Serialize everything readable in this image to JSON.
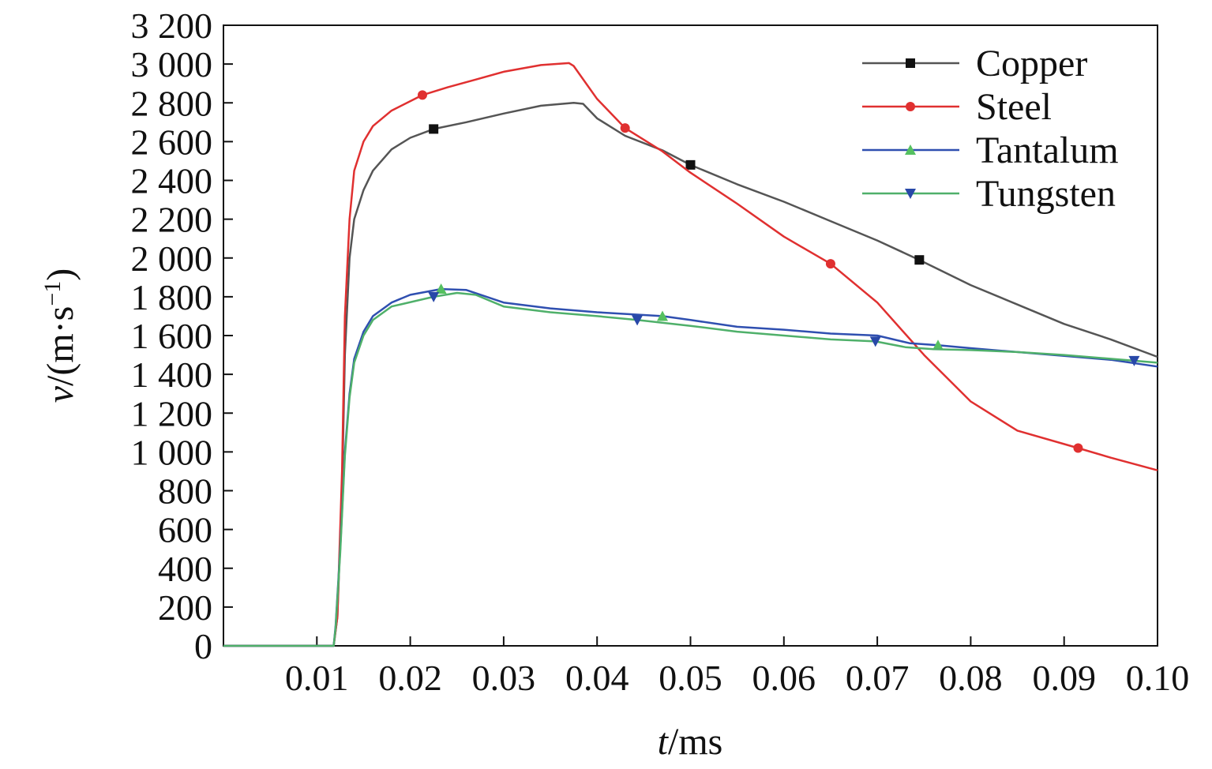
{
  "chart_data": {
    "type": "line",
    "xlabel_var": "t",
    "xlabel_unit": "/ms",
    "ylabel_var": "v",
    "ylabel_unit": "/(m·s",
    "ylabel_exp": "−1",
    "ylabel_close": ")",
    "xlim": [
      0,
      0.1
    ],
    "ylim": [
      0,
      3200
    ],
    "x_tick_values": [
      0.01,
      0.02,
      0.03,
      0.04,
      0.05,
      0.06,
      0.07,
      0.08,
      0.09,
      0.1
    ],
    "x_tick_labels": [
      "0.01",
      "0.02",
      "0.03",
      "0.04",
      "0.05",
      "0.06",
      "0.07",
      "0.08",
      "0.09",
      "0.10"
    ],
    "y_tick_values": [
      0,
      200,
      400,
      600,
      800,
      1000,
      1200,
      1400,
      1600,
      1800,
      2000,
      2200,
      2400,
      2600,
      2800,
      3000,
      3200
    ],
    "y_tick_labels": [
      "0",
      "200",
      "400",
      "600",
      "800",
      "1 000",
      "1 200",
      "1 400",
      "1 600",
      "1 800",
      "2 000",
      "2 200",
      "2 400",
      "2 600",
      "2 800",
      "3 000",
      "3 200"
    ],
    "grid": false,
    "legend_position": "top-right",
    "series": [
      {
        "name": "Copper",
        "color": "#555555",
        "marker": "square",
        "marker_color": "#111111",
        "x": [
          0,
          0.011,
          0.0118,
          0.0122,
          0.0127,
          0.013,
          0.0135,
          0.014,
          0.015,
          0.016,
          0.018,
          0.02,
          0.0225,
          0.026,
          0.03,
          0.034,
          0.0375,
          0.0385,
          0.04,
          0.043,
          0.047,
          0.05,
          0.055,
          0.06,
          0.065,
          0.07,
          0.0745,
          0.08,
          0.085,
          0.09,
          0.095,
          0.1
        ],
        "y": [
          0,
          0,
          0,
          150,
          800,
          1500,
          2000,
          2200,
          2350,
          2450,
          2560,
          2620,
          2665,
          2700,
          2745,
          2785,
          2800,
          2795,
          2720,
          2630,
          2555,
          2480,
          2380,
          2290,
          2190,
          2090,
          1990,
          1860,
          1760,
          1660,
          1580,
          1490
        ]
      },
      {
        "name": "Steel",
        "color": "#e03030",
        "marker": "circle",
        "marker_color": "#e03030",
        "x": [
          0,
          0.011,
          0.0118,
          0.0122,
          0.0127,
          0.013,
          0.0135,
          0.014,
          0.015,
          0.016,
          0.018,
          0.0213,
          0.024,
          0.027,
          0.03,
          0.034,
          0.037,
          0.0375,
          0.04,
          0.043,
          0.047,
          0.05,
          0.055,
          0.06,
          0.065,
          0.07,
          0.075,
          0.08,
          0.085,
          0.0915,
          0.095,
          0.1
        ],
        "y": [
          0,
          0,
          0,
          150,
          900,
          1700,
          2200,
          2450,
          2600,
          2680,
          2760,
          2840,
          2880,
          2920,
          2960,
          2995,
          3005,
          2990,
          2820,
          2670,
          2550,
          2440,
          2280,
          2110,
          1970,
          1770,
          1500,
          1260,
          1110,
          1020,
          970,
          905
        ]
      },
      {
        "name": "Tantalum",
        "color": "#2f4fb0",
        "marker": "triangle-up",
        "marker_color": "#55c060",
        "x": [
          0,
          0.011,
          0.0118,
          0.012,
          0.0125,
          0.013,
          0.0135,
          0.014,
          0.015,
          0.016,
          0.018,
          0.02,
          0.0233,
          0.026,
          0.03,
          0.035,
          0.04,
          0.047,
          0.05,
          0.055,
          0.06,
          0.065,
          0.07,
          0.0735,
          0.0765,
          0.08,
          0.085,
          0.09,
          0.095,
          0.1
        ],
        "y": [
          0,
          0,
          0,
          100,
          500,
          1000,
          1300,
          1480,
          1620,
          1700,
          1770,
          1810,
          1840,
          1835,
          1770,
          1740,
          1720,
          1700,
          1680,
          1645,
          1630,
          1610,
          1600,
          1560,
          1550,
          1535,
          1515,
          1495,
          1475,
          1440
        ]
      },
      {
        "name": "Tungsten",
        "color": "#4fb06a",
        "marker": "triangle-down",
        "marker_color": "#2848a8",
        "x": [
          0,
          0.011,
          0.0118,
          0.012,
          0.0125,
          0.013,
          0.0135,
          0.014,
          0.015,
          0.016,
          0.018,
          0.0225,
          0.025,
          0.027,
          0.03,
          0.035,
          0.04,
          0.0443,
          0.05,
          0.055,
          0.06,
          0.065,
          0.0698,
          0.073,
          0.076,
          0.08,
          0.085,
          0.09,
          0.0975,
          0.1
        ],
        "y": [
          0,
          0,
          0,
          90,
          480,
          980,
          1280,
          1460,
          1600,
          1680,
          1750,
          1800,
          1820,
          1810,
          1750,
          1720,
          1700,
          1680,
          1650,
          1620,
          1600,
          1580,
          1570,
          1540,
          1530,
          1525,
          1515,
          1500,
          1470,
          1460
        ]
      }
    ]
  }
}
